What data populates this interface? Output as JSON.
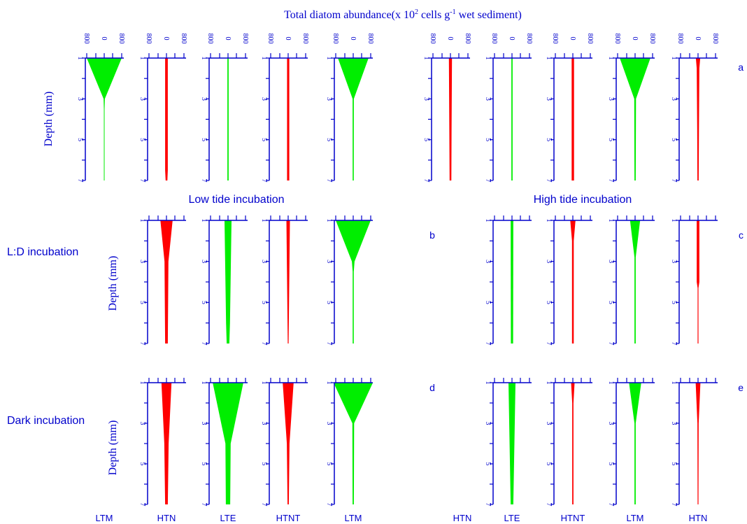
{
  "colors": {
    "axis": "#0000cc",
    "text": "#0000cc",
    "red": "#ff0000",
    "green": "#00ee00",
    "background": "#ffffff"
  },
  "labels": {
    "title_main": "Total diatom abundance(x 10",
    "title_sup": "2",
    "title_mid": " cells g",
    "title_sup2": "-1",
    "title_end": " wet sediment)",
    "ylabel": "Depth (mm)",
    "low_tide": "Low tide incubation",
    "high_tide": "High tide incubation",
    "row_ld": "L:D incubation",
    "row_dark": "Dark incubation"
  },
  "panel_letters": [
    "a",
    "b",
    "c",
    "d",
    "e"
  ],
  "bottom_labels": [
    "LTM",
    "HTN",
    "LTE",
    "HTNT",
    "LTM",
    "HTN",
    "LTE",
    "HTNT",
    "LTM",
    "HTN"
  ],
  "chart_data": {
    "type": "kite",
    "title": "Total diatom abundance(x 10² cells g⁻¹ wet sediment)",
    "ylabel": "Depth (mm)",
    "depth_ticks": [
      "1",
      "3",
      "5",
      "7"
    ],
    "x_ticks": [
      "800",
      "0",
      "800"
    ],
    "y_range": [
      1,
      7
    ],
    "panels": [
      {
        "letter": "a",
        "sites": [
          {
            "site": "LTM",
            "color": "green",
            "depth": [
              1,
              3,
              3.5,
              7
            ],
            "halfwidth": [
              800,
              30,
              15,
              15
            ]
          },
          {
            "site": "HTN",
            "color": "red",
            "depth": [
              1,
              6.5,
              7
            ],
            "halfwidth": [
              60,
              60,
              40
            ]
          },
          {
            "site": "LTE",
            "color": "green",
            "depth": [
              1,
              7
            ],
            "halfwidth": [
              30,
              30
            ]
          },
          {
            "site": "HTNT",
            "color": "red",
            "depth": [
              1,
              7
            ],
            "halfwidth": [
              50,
              50
            ]
          },
          {
            "site": "LTM",
            "color": "green",
            "depth": [
              1,
              3,
              7
            ],
            "halfwidth": [
              700,
              30,
              25
            ]
          },
          {
            "site": "HTN",
            "color": "red",
            "depth": [
              1,
              4.5,
              7
            ],
            "halfwidth": [
              70,
              50,
              40
            ]
          },
          {
            "site": "LTE",
            "color": "green",
            "depth": [
              1,
              7
            ],
            "halfwidth": [
              30,
              30
            ]
          },
          {
            "site": "HTNT",
            "color": "red",
            "depth": [
              1,
              7
            ],
            "halfwidth": [
              55,
              55
            ]
          },
          {
            "site": "LTM",
            "color": "green",
            "depth": [
              1,
              3,
              7
            ],
            "halfwidth": [
              700,
              40,
              30
            ]
          },
          {
            "site": "HTN",
            "color": "red",
            "depth": [
              1,
              1.5,
              4.5,
              7
            ],
            "halfwidth": [
              100,
              60,
              40,
              30
            ]
          }
        ]
      },
      {
        "letter": "b",
        "sites": [
          {
            "site": "HTN",
            "color": "red",
            "depth": [
              1,
              3,
              7
            ],
            "halfwidth": [
              280,
              90,
              60
            ]
          },
          {
            "site": "LTE",
            "color": "green",
            "depth": [
              1,
              6,
              7
            ],
            "halfwidth": [
              160,
              90,
              60
            ]
          },
          {
            "site": "HTNT",
            "color": "red",
            "depth": [
              1,
              7
            ],
            "halfwidth": [
              80,
              20
            ]
          },
          {
            "site": "LTM",
            "color": "green",
            "depth": [
              1,
              3,
              3.5,
              7
            ],
            "halfwidth": [
              800,
              60,
              25,
              25
            ]
          }
        ]
      },
      {
        "letter": "c",
        "sites": [
          {
            "site": "LTE",
            "color": "green",
            "depth": [
              1,
              7
            ],
            "halfwidth": [
              60,
              50
            ]
          },
          {
            "site": "HTNT",
            "color": "red",
            "depth": [
              1,
              2,
              7
            ],
            "halfwidth": [
              120,
              40,
              40
            ]
          },
          {
            "site": "LTM",
            "color": "green",
            "depth": [
              1,
              2.8,
              7
            ],
            "halfwidth": [
              230,
              30,
              30
            ]
          },
          {
            "site": "HTN",
            "color": "red",
            "depth": [
              1,
              4,
              4.3,
              7
            ],
            "halfwidth": [
              60,
              60,
              20,
              20
            ]
          }
        ]
      },
      {
        "letter": "d",
        "sites": [
          {
            "site": "HTN",
            "color": "red",
            "depth": [
              1,
              4,
              7
            ],
            "halfwidth": [
              230,
              100,
              60
            ]
          },
          {
            "site": "LTE",
            "color": "green",
            "depth": [
              1,
              4,
              7
            ],
            "halfwidth": [
              700,
              120,
              100
            ]
          },
          {
            "site": "HTNT",
            "color": "red",
            "depth": [
              1,
              4,
              7
            ],
            "halfwidth": [
              250,
              60,
              30
            ]
          },
          {
            "site": "LTM",
            "color": "green",
            "depth": [
              1,
              3,
              7
            ],
            "halfwidth": [
              900,
              40,
              30
            ]
          }
        ]
      },
      {
        "letter": "e",
        "sites": [
          {
            "site": "LTE",
            "color": "green",
            "depth": [
              1,
              7
            ],
            "halfwidth": [
              160,
              60
            ]
          },
          {
            "site": "HTNT",
            "color": "red",
            "depth": [
              1,
              2,
              7
            ],
            "halfwidth": [
              80,
              30,
              30
            ]
          },
          {
            "site": "LTM",
            "color": "green",
            "depth": [
              1,
              3,
              7
            ],
            "halfwidth": [
              280,
              30,
              30
            ]
          },
          {
            "site": "HTN",
            "color": "red",
            "depth": [
              1,
              3,
              7
            ],
            "halfwidth": [
              110,
              30,
              20
            ]
          }
        ]
      }
    ]
  }
}
